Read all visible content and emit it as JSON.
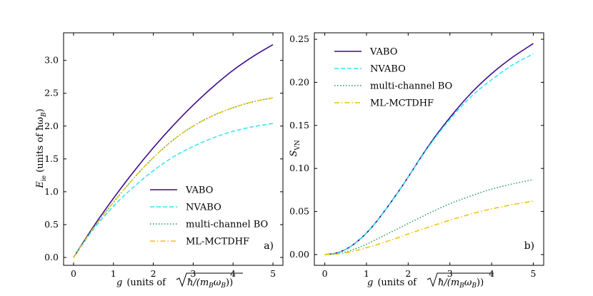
{
  "chart_data": [
    {
      "type": "line",
      "panel_tag": "a)",
      "xlabel": "g  (units of √ħ/(m_B ω_B))",
      "xlabel_prefix": "g",
      "xlabel_units": "(units of",
      "xlabel_expr": "ħ/(m",
      "xlabel_sub_b": "B",
      "xlabel_omega": "ω",
      "xlabel_close": "))",
      "ylabel_main": "E",
      "ylabel_sub": "ie",
      "ylabel_units": "(units of ħω",
      "ylabel_units_sub": "B",
      "ylabel_close": ")",
      "xlim": [
        -0.25,
        5.25
      ],
      "ylim": [
        -0.12,
        3.42
      ],
      "xticks": [
        0,
        1,
        2,
        3,
        4,
        5
      ],
      "xtick_labels": [
        "0",
        "1",
        "2",
        "3",
        "4",
        "5"
      ],
      "yticks": [
        0.0,
        0.5,
        1.0,
        1.5,
        2.0,
        2.5,
        3.0
      ],
      "ytick_labels": [
        "0.0",
        "0.5",
        "1.0",
        "1.5",
        "2.0",
        "2.5",
        "3.0"
      ],
      "legend_position": "lower-right",
      "x": [
        0,
        0.5,
        1.0,
        1.5,
        2.0,
        2.5,
        3.0,
        3.5,
        4.0,
        4.5,
        5.0
      ],
      "series": [
        {
          "name": "VABO",
          "color": "#3d0a8a",
          "dash": "solid",
          "values": [
            0.0,
            0.47,
            0.9,
            1.3,
            1.67,
            2.01,
            2.32,
            2.6,
            2.85,
            3.06,
            3.24
          ]
        },
        {
          "name": "NVABO",
          "color": "#2fe6ee",
          "dash": "dashed",
          "values": [
            0.0,
            0.43,
            0.78,
            1.07,
            1.32,
            1.53,
            1.69,
            1.82,
            1.92,
            1.99,
            2.04
          ]
        },
        {
          "name": "multi-channel BO",
          "color": "#1f9a60",
          "dash": "dotted",
          "values": [
            0.0,
            0.45,
            0.84,
            1.2,
            1.52,
            1.79,
            2.0,
            2.16,
            2.28,
            2.37,
            2.43
          ]
        },
        {
          "name": "ML-MCTDHF",
          "color": "#f0c10a",
          "dash": "dashdot",
          "values": [
            0.0,
            0.45,
            0.84,
            1.2,
            1.52,
            1.79,
            2.0,
            2.16,
            2.28,
            2.37,
            2.43
          ]
        }
      ]
    },
    {
      "type": "line",
      "panel_tag": "b)",
      "xlabel": "g  (units of √ħ/(m_B ω_B))",
      "xlabel_prefix": "g",
      "xlabel_units": "(units of",
      "xlabel_expr": "ħ/(m",
      "xlabel_sub_b": "B",
      "xlabel_omega": "ω",
      "xlabel_close": "))",
      "ylabel_main": "S",
      "ylabel_sub": "VN",
      "xlim": [
        -0.25,
        5.25
      ],
      "ylim": [
        -0.0125,
        0.2575
      ],
      "xticks": [
        0,
        1,
        2,
        3,
        4,
        5
      ],
      "xtick_labels": [
        "0",
        "1",
        "2",
        "3",
        "4",
        "5"
      ],
      "yticks": [
        0.0,
        0.05,
        0.1,
        0.15,
        0.2,
        0.25
      ],
      "ytick_labels": [
        "0.00",
        "0.05",
        "0.10",
        "0.15",
        "0.20",
        "0.25"
      ],
      "legend_position": "upper-left",
      "x": [
        0,
        0.25,
        0.5,
        0.75,
        1.0,
        1.25,
        1.5,
        1.75,
        2.0,
        2.5,
        3.0,
        3.5,
        4.0,
        4.5,
        5.0
      ],
      "series": [
        {
          "name": "VABO",
          "color": "#3d0a8a",
          "dash": "solid",
          "values": [
            0.0,
            0.0015,
            0.006,
            0.014,
            0.025,
            0.039,
            0.055,
            0.072,
            0.09,
            0.127,
            0.159,
            0.187,
            0.21,
            0.229,
            0.245
          ]
        },
        {
          "name": "NVABO",
          "color": "#2fe6ee",
          "dash": "dashed",
          "values": [
            0.0,
            0.0015,
            0.006,
            0.014,
            0.025,
            0.039,
            0.055,
            0.072,
            0.09,
            0.126,
            0.157,
            0.183,
            0.203,
            0.22,
            0.233
          ]
        },
        {
          "name": "multi-channel BO",
          "color": "#1f9a60",
          "dash": "dotted",
          "values": [
            0.0,
            0.0008,
            0.003,
            0.007,
            0.012,
            0.018,
            0.024,
            0.03,
            0.036,
            0.048,
            0.059,
            0.068,
            0.076,
            0.082,
            0.087
          ]
        },
        {
          "name": "ML-MCTDHF",
          "color": "#f0c10a",
          "dash": "dashdot",
          "values": [
            0.0,
            0.0005,
            0.002,
            0.0045,
            0.008,
            0.0115,
            0.0155,
            0.0195,
            0.024,
            0.032,
            0.04,
            0.047,
            0.053,
            0.058,
            0.062
          ]
        }
      ]
    }
  ]
}
